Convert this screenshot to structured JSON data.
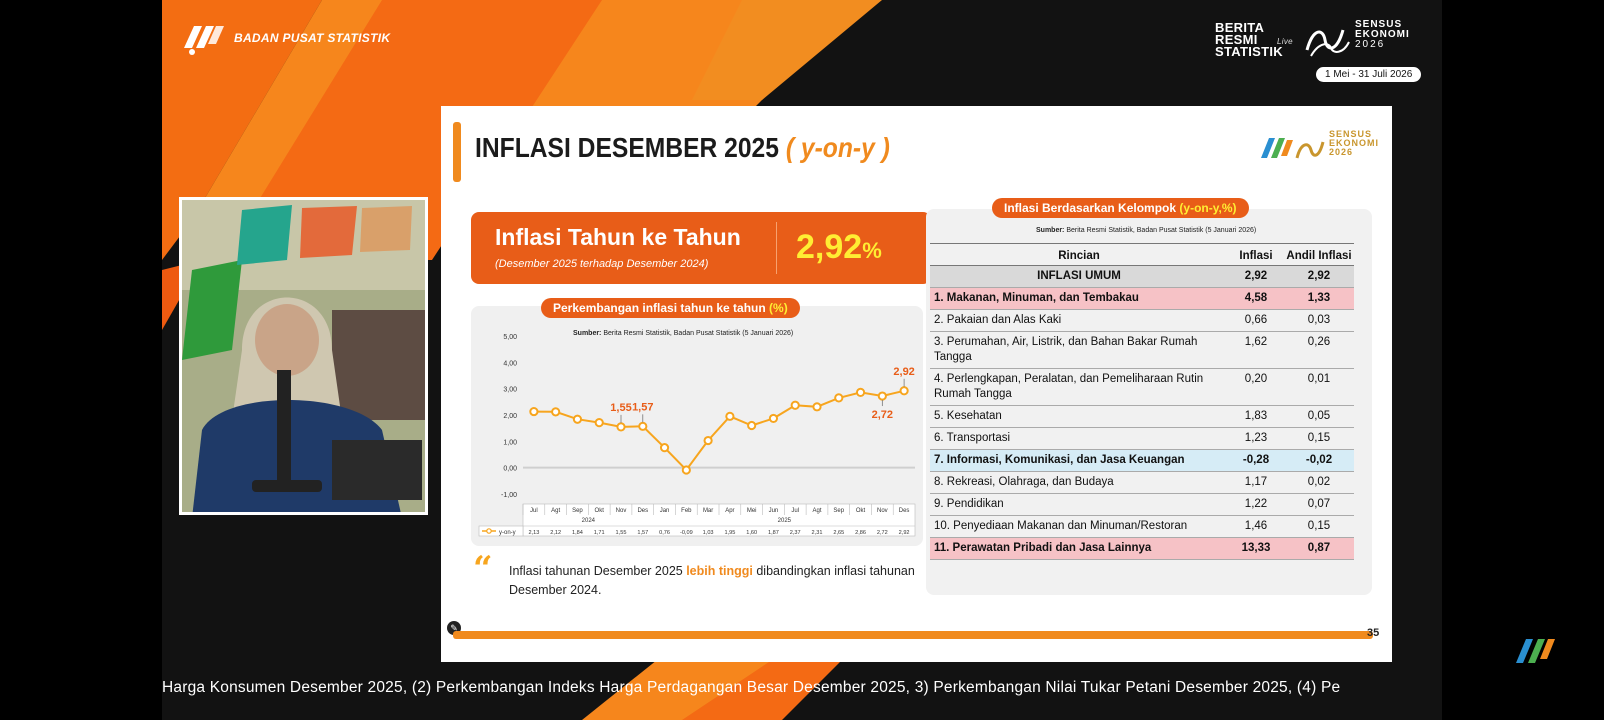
{
  "header": {
    "org_name": "BADAN PUSAT STATISTIK",
    "brs_line1": "BERITA",
    "brs_line2": "RESMI",
    "brs_line3": "STATISTIK",
    "brs_live": "Live",
    "sensus_line1": "SENSUS",
    "sensus_line2": "EKONOMI",
    "sensus_year": "2026",
    "sensus_dates": "1 Mei - 31 Juli 2026"
  },
  "slide": {
    "title": "INFLASI DESEMBER 2025",
    "title_suffix": "( y-on-y )",
    "logo_line1": "SENSUS",
    "logo_line2": "EKONOMI",
    "logo_year": "2026",
    "hero_label": "Inflasi Tahun ke Tahun",
    "hero_sub": "(Desember 2025 terhadap Desember 2024)",
    "hero_value": "2,92",
    "hero_pct": "%",
    "chart_title": "Perkembangan inflasi tahun ke tahun ",
    "chart_title_unit": "(%)",
    "chart_source_label": "Sumber:",
    "chart_source": " Berita Resmi Statistik, Badan Pusat Statistik (5 Januari 2026)",
    "quote_pre": "Inflasi tahunan Desember 2025 ",
    "quote_hl": "lebih tinggi",
    "quote_post": " dibandingkan inflasi tahunan Desember 2024.",
    "page_number": "35",
    "accent": "#f08a1e",
    "hero_color": "#e85d18"
  },
  "table": {
    "title": "Inflasi Berdasarkan Kelompok ",
    "title_unit": "(y-on-y,%)",
    "source_label": "Sumber:",
    "source": " Berita Resmi Statistik, Badan Pusat Statistik (5 Januari 2026)",
    "headers": [
      "Rincian",
      "Inflasi",
      "Andil Inflasi"
    ],
    "total": {
      "label": "INFLASI UMUM",
      "inflasi": "2,92",
      "andil": "2,92"
    },
    "rows": [
      {
        "label": "1.  Makanan, Minuman, dan Tembakau",
        "inflasi": "4,58",
        "andil": "1,33",
        "hl": "red"
      },
      {
        "label": "2.  Pakaian dan Alas Kaki",
        "inflasi": "0,66",
        "andil": "0,03",
        "hl": ""
      },
      {
        "label": "3.  Perumahan, Air, Listrik, dan Bahan Bakar Rumah Tangga",
        "inflasi": "1,62",
        "andil": "0,26",
        "hl": ""
      },
      {
        "label": "4.  Perlengkapan, Peralatan, dan Pemeliharaan Rutin Rumah Tangga",
        "inflasi": "0,20",
        "andil": "0,01",
        "hl": ""
      },
      {
        "label": "5.  Kesehatan",
        "inflasi": "1,83",
        "andil": "0,05",
        "hl": ""
      },
      {
        "label": "6.  Transportasi",
        "inflasi": "1,23",
        "andil": "0,15",
        "hl": ""
      },
      {
        "label": "7.  Informasi, Komunikasi, dan Jasa Keuangan",
        "inflasi": "-0,28",
        "andil": "-0,02",
        "hl": "blue"
      },
      {
        "label": "8.  Rekreasi, Olahraga, dan Budaya",
        "inflasi": "1,17",
        "andil": "0,02",
        "hl": ""
      },
      {
        "label": "9.  Pendidikan",
        "inflasi": "1,22",
        "andil": "0,07",
        "hl": ""
      },
      {
        "label": "10. Penyediaan Makanan dan Minuman/Restoran",
        "inflasi": "1,46",
        "andil": "0,15",
        "hl": ""
      },
      {
        "label": "11. Perawatan Pribadi dan Jasa Lainnya",
        "inflasi": "13,33",
        "andil": "0,87",
        "hl": "red"
      }
    ]
  },
  "chart_data": {
    "type": "line",
    "title": "Perkembangan inflasi tahun ke tahun (%)",
    "categories": [
      "Jul",
      "Agt",
      "Sep",
      "Okt",
      "Nov",
      "Des",
      "Jan",
      "Feb",
      "Mar",
      "Apr",
      "Mei",
      "Jun",
      "Jul",
      "Agt",
      "Sep",
      "Okt",
      "Nov",
      "Des"
    ],
    "groups": [
      {
        "label": "2024",
        "count": 6
      },
      {
        "label": "2025",
        "count": 12
      }
    ],
    "series": [
      {
        "name": "y-on-y",
        "values": [
          2.13,
          2.12,
          1.84,
          1.71,
          1.55,
          1.57,
          0.76,
          -0.09,
          1.03,
          1.95,
          1.6,
          1.87,
          2.37,
          2.31,
          2.65,
          2.86,
          2.72,
          2.92
        ]
      }
    ],
    "table_values": [
      "2,13",
      "2,12",
      "1,84",
      "1,71",
      "1,55",
      "1,57",
      "0,76",
      "-0,09",
      "1,03",
      "1,95",
      "1,60",
      "1,87",
      "2,37",
      "2,31",
      "2,65",
      "2,86",
      "2,72",
      "2,92"
    ],
    "highlight_labels": [
      {
        "index": 4,
        "text": "1,55",
        "pos": "above"
      },
      {
        "index": 5,
        "text": "1,57",
        "pos": "above"
      },
      {
        "index": 16,
        "text": "2,72",
        "pos": "below"
      },
      {
        "index": 17,
        "text": "2,92",
        "pos": "above"
      }
    ],
    "yticks": [
      "5,00",
      "4,00",
      "3,00",
      "2,00",
      "1,00",
      "0,00",
      "-1,00"
    ],
    "ylim": [
      -1,
      5
    ],
    "grid": false,
    "legend": "bottom-left table",
    "color": "#f7a51e"
  },
  "ticker": {
    "text": "Harga Konsumen Desember 2025, (2) Perkembangan Indeks Harga Perdagangan Besar Desember 2025, 3) Perkembangan Nilai Tukar Petani Desember 2025, (4) Pe"
  }
}
